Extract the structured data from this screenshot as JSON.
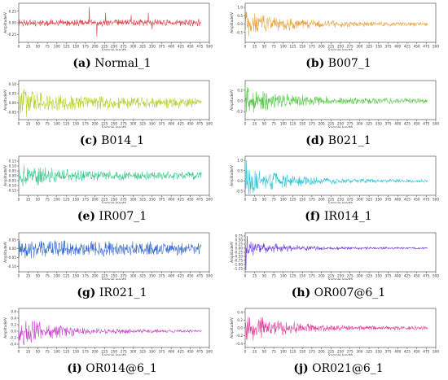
{
  "panels": [
    {
      "tag": "(a)",
      "name": "Normal_1",
      "color": "#d9393f",
      "ylabel": "Amplitude/V",
      "xlabel": "Sample length",
      "yticks": [
        "0.25",
        "0.00",
        "-0.25"
      ],
      "ylim": [
        -0.42,
        0.42
      ],
      "seed": 11,
      "amp_head": 0.08,
      "amp_tail": 0.08,
      "spikes": [
        [
          185,
          0.34
        ],
        [
          205,
          -0.3
        ],
        [
          228,
          0.22
        ],
        [
          295,
          0.17
        ],
        [
          340,
          0.22
        ],
        [
          350,
          -0.14
        ]
      ]
    },
    {
      "tag": "(b)",
      "name": "B007_1",
      "color": "#e8a13a",
      "ylabel": "Amplitude/V",
      "xlabel": "Sample length",
      "yticks": [
        "1.0",
        "0.5",
        "0.0",
        "-0.5"
      ],
      "ylim": [
        -1.1,
        1.25
      ],
      "seed": 23,
      "amp_head": 0.9,
      "amp_tail": 0.12,
      "spikes": []
    },
    {
      "tag": "(c)",
      "name": "B014_1",
      "color": "#b8cf2a",
      "ylabel": "Amplitude/V",
      "xlabel": "Sample length",
      "yticks": [
        "0.10",
        "0.05",
        "0.00",
        "-0.05"
      ],
      "ylim": [
        -0.09,
        0.12
      ],
      "seed": 37,
      "amp_head": 0.085,
      "amp_tail": 0.03,
      "spikes": []
    },
    {
      "tag": "(d)",
      "name": "B021_1",
      "color": "#4fc63f",
      "ylabel": "Amplitude/V",
      "xlabel": "Sample length",
      "yticks": [
        "0.2",
        "0.0",
        "-0.2"
      ],
      "ylim": [
        -0.35,
        0.38
      ],
      "seed": 41,
      "amp_head": 0.3,
      "amp_tail": 0.05,
      "spikes": []
    },
    {
      "tag": "(e)",
      "name": "IR007_1",
      "color": "#32c88a",
      "ylabel": "Amplitude/V",
      "xlabel": "Sample length",
      "yticks": [
        "0.15",
        "0.10",
        "0.05",
        "0.00",
        "-0.05",
        "-0.10",
        "-0.15"
      ],
      "ylim": [
        -0.2,
        0.2
      ],
      "seed": 53,
      "amp_head": 0.15,
      "amp_tail": 0.04,
      "spikes": []
    },
    {
      "tag": "(f)",
      "name": "IR014_1",
      "color": "#2ec4d8",
      "ylabel": "Amplitude/V",
      "xlabel": "Sample length",
      "yticks": [
        "1.0",
        "0.5",
        "0.0",
        "-0.5"
      ],
      "ylim": [
        -0.7,
        1.2
      ],
      "seed": 67,
      "amp_head": 0.8,
      "amp_tail": 0.07,
      "spikes": [
        [
          3,
          1.0
        ]
      ]
    },
    {
      "tag": "(g)",
      "name": "IR021_1",
      "color": "#3366cc",
      "ylabel": "Amplitude/V",
      "xlabel": "Sample length",
      "yticks": [
        "0.05",
        "0.00",
        "-0.05",
        "-0.10"
      ],
      "ylim": [
        -0.13,
        0.09
      ],
      "seed": 71,
      "amp_head": 0.07,
      "amp_tail": 0.04,
      "spikes": []
    },
    {
      "tag": "(h)",
      "name": "OR007@6_1",
      "color": "#6a3bd0",
      "ylabel": "Amplitude/V",
      "xlabel": "Sample length",
      "yticks": [
        "0.75",
        "0.50",
        "0.25",
        "0.00",
        "-0.25",
        "-0.50",
        "-0.75",
        "-1.00",
        "-1.25"
      ],
      "ylim": [
        -1.45,
        0.95
      ],
      "seed": 83,
      "amp_head": 0.55,
      "amp_tail": 0.05,
      "spikes": [
        [
          2,
          -1.35
        ],
        [
          5,
          0.75
        ]
      ]
    },
    {
      "tag": "(i)",
      "name": "OR014@6_1",
      "color": "#cc3fd2",
      "ylabel": "Amplitude/V",
      "xlabel": "Sample length",
      "yticks": [
        "0.6",
        "0.4",
        "0.2",
        "0.0",
        "-0.2",
        "-0.4"
      ],
      "ylim": [
        -0.5,
        0.7
      ],
      "seed": 97,
      "amp_head": 0.5,
      "amp_tail": 0.04,
      "spikes": []
    },
    {
      "tag": "(j)",
      "name": "OR021@6_1",
      "color": "#e03b9a",
      "ylabel": "Amplitude/V",
      "xlabel": "Sample length",
      "yticks": [
        "0.4",
        "0.2",
        "0.0",
        "-0.2",
        "-0.4"
      ],
      "ylim": [
        -0.5,
        0.5
      ],
      "seed": 101,
      "amp_head": 0.4,
      "amp_tail": 0.05,
      "spikes": []
    }
  ],
  "xticks": [
    "0",
    "25",
    "50",
    "75",
    "100",
    "125",
    "150",
    "175",
    "200",
    "225",
    "250",
    "275",
    "300",
    "325",
    "350",
    "375",
    "400",
    "425",
    "450",
    "475",
    "500"
  ],
  "n_samples": 480,
  "xlim": [
    0,
    500
  ],
  "chart_data": [
    {
      "type": "line",
      "title": "",
      "xlabel": "Sample length",
      "ylabel": "Amplitude/V",
      "xlim": [
        0,
        500
      ],
      "ylim": [
        -0.42,
        0.42
      ],
      "grid": false,
      "legend": "none",
      "series": [
        {
          "values_shown_as": "vibration waveform"
        }
      ]
    }
  ]
}
